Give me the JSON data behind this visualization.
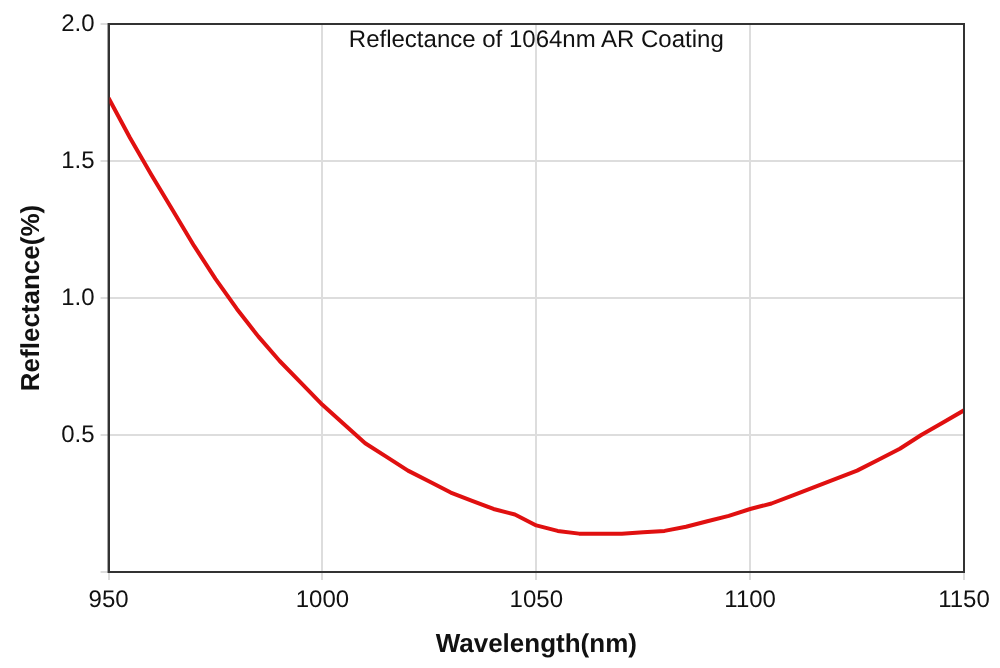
{
  "chart_data": {
    "type": "line",
    "title": "Reflectance of 1064nm AR Coating",
    "xlabel": "Wavelength(nm)",
    "ylabel": "Reflectance(%)",
    "x": [
      950,
      955,
      960,
      965,
      970,
      975,
      980,
      985,
      990,
      995,
      1000,
      1005,
      1010,
      1015,
      1020,
      1025,
      1030,
      1035,
      1040,
      1045,
      1050,
      1055,
      1060,
      1065,
      1070,
      1075,
      1080,
      1085,
      1090,
      1095,
      1100,
      1105,
      1110,
      1115,
      1120,
      1125,
      1130,
      1135,
      1140,
      1145,
      1150
    ],
    "series": [
      {
        "color": "#e01010",
        "values": [
          1.73,
          1.585,
          1.45,
          1.32,
          1.19,
          1.07,
          0.96,
          0.86,
          0.77,
          0.69,
          0.61,
          0.54,
          0.47,
          0.42,
          0.37,
          0.33,
          0.29,
          0.26,
          0.23,
          0.21,
          0.17,
          0.15,
          0.14,
          0.14,
          0.14,
          0.145,
          0.15,
          0.165,
          0.185,
          0.205,
          0.23,
          0.25,
          0.28,
          0.31,
          0.34,
          0.37,
          0.41,
          0.45,
          0.5,
          0.545,
          0.59
        ]
      }
    ],
    "xlim": [
      950,
      1150
    ],
    "xticks": [
      950,
      1000,
      1050,
      1100,
      1150
    ],
    "ylim": [
      0,
      2
    ],
    "yticks": [
      {
        "value": 0,
        "label": null
      },
      0.5,
      {
        "value": 1,
        "label": "1.0"
      },
      1.5,
      {
        "value": 2,
        "label": "2.0"
      }
    ],
    "grid": true,
    "legend": false,
    "marker": "none",
    "line_style": "solid"
  }
}
